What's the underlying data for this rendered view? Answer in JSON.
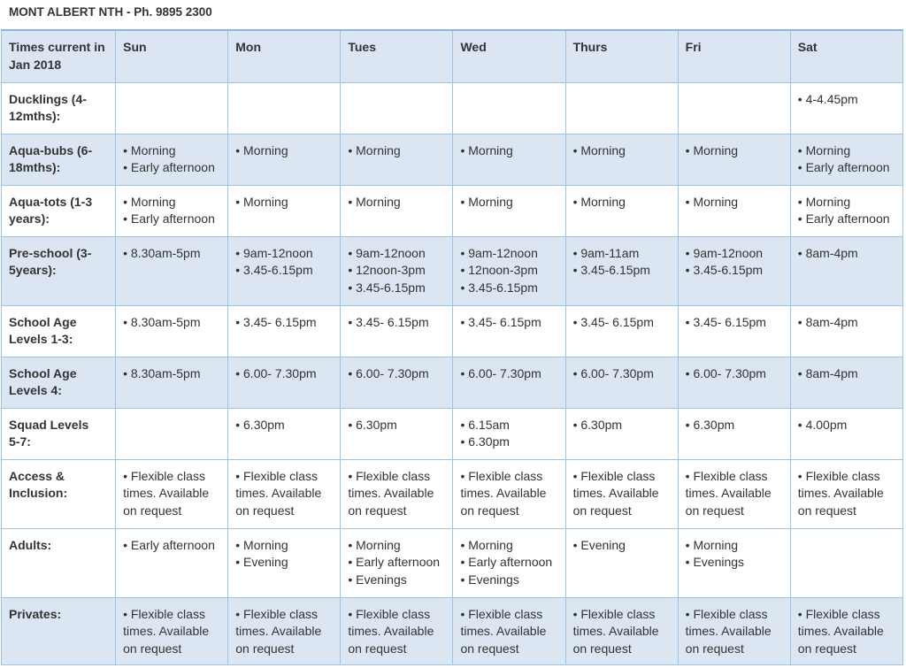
{
  "title": "MONT ALBERT NTH - Ph. 9895 2300",
  "colors": {
    "header_bg": "#dce6f2",
    "border": "#9dc3e6",
    "text": "#333333"
  },
  "header": [
    "Times current in Jan 2018",
    "Sun",
    "Mon",
    "Tues",
    "Wed",
    "Thurs",
    "Fri",
    "Sat"
  ],
  "rows": [
    {
      "label": "Ducklings (4-12mths):",
      "cells": [
        [],
        [],
        [],
        [],
        [],
        [],
        [
          "• 4-4.45pm"
        ]
      ]
    },
    {
      "label": "Aqua-bubs (6-18mths):",
      "cells": [
        [
          "• Morning",
          "• Early afternoon"
        ],
        [
          "• Morning"
        ],
        [
          "• Morning"
        ],
        [
          "• Morning"
        ],
        [
          "• Morning"
        ],
        [
          "• Morning"
        ],
        [
          "• Morning",
          "• Early afternoon"
        ]
      ]
    },
    {
      "label": "Aqua-tots (1-3 years):",
      "cells": [
        [
          "• Morning",
          "• Early afternoon"
        ],
        [
          "• Morning"
        ],
        [
          "• Morning"
        ],
        [
          "• Morning"
        ],
        [
          "• Morning"
        ],
        [
          "• Morning"
        ],
        [
          "• Morning",
          "• Early afternoon"
        ]
      ]
    },
    {
      "label": "Pre-school (3-5years):",
      "cells": [
        [
          "• 8.30am-5pm"
        ],
        [
          "• 9am-12noon",
          "• 3.45-6.15pm"
        ],
        [
          "• 9am-12noon",
          "• 12noon-3pm",
          "• 3.45-6.15pm"
        ],
        [
          "• 9am-12noon",
          "• 12noon-3pm",
          "• 3.45-6.15pm"
        ],
        [
          "• 9am-11am",
          "• 3.45-6.15pm"
        ],
        [
          "• 9am-12noon",
          "• 3.45-6.15pm"
        ],
        [
          "• 8am-4pm"
        ]
      ]
    },
    {
      "label": "School Age Levels 1-3:",
      "cells": [
        [
          "• 8.30am-5pm"
        ],
        [
          "• 3.45- 6.15pm"
        ],
        [
          "• 3.45- 6.15pm"
        ],
        [
          "• 3.45- 6.15pm"
        ],
        [
          "• 3.45- 6.15pm"
        ],
        [
          "• 3.45- 6.15pm"
        ],
        [
          "• 8am-4pm"
        ]
      ]
    },
    {
      "label": "School Age Levels 4:",
      "cells": [
        [
          "• 8.30am-5pm"
        ],
        [
          "• 6.00- 7.30pm"
        ],
        [
          "• 6.00- 7.30pm"
        ],
        [
          "• 6.00- 7.30pm"
        ],
        [
          "• 6.00- 7.30pm"
        ],
        [
          "• 6.00- 7.30pm"
        ],
        [
          "• 8am-4pm"
        ]
      ]
    },
    {
      "label": "Squad Levels 5-7:",
      "cells": [
        [],
        [
          "• 6.30pm"
        ],
        [
          "• 6.30pm"
        ],
        [
          "• 6.15am",
          "• 6.30pm"
        ],
        [
          "• 6.30pm"
        ],
        [
          "• 6.30pm"
        ],
        [
          "• 4.00pm"
        ]
      ]
    },
    {
      "label": "Access & Inclusion:",
      "cells": [
        [
          "• Flexible class",
          "times.  Available",
          "on request"
        ],
        [
          "• Flexible class",
          "times.  Available",
          "on request"
        ],
        [
          "• Flexible class",
          "times.  Available",
          "on request"
        ],
        [
          "• Flexible class",
          "times.  Available",
          "on request"
        ],
        [
          "• Flexible class",
          "times.  Available",
          "on request"
        ],
        [
          "• Flexible class",
          "times.  Available",
          "on request"
        ],
        [
          "• Flexible class",
          "times.  Available",
          "on request"
        ]
      ]
    },
    {
      "label": "Adults:",
      "cells": [
        [
          "• Early afternoon"
        ],
        [
          "• Morning",
          "• Evening"
        ],
        [
          "• Morning",
          "• Early afternoon",
          "• Evenings"
        ],
        [
          "• Morning",
          "• Early afternoon",
          "• Evenings"
        ],
        [
          "• Evening"
        ],
        [
          "• Morning",
          "• Evenings"
        ],
        []
      ]
    },
    {
      "label": "Privates:",
      "cells": [
        [
          "• Flexible class",
          "times.  Available",
          "on request"
        ],
        [
          "• Flexible class",
          "times.  Available",
          "on request"
        ],
        [
          "• Flexible class",
          "times.  Available",
          "on request"
        ],
        [
          "• Flexible class",
          "times.  Available",
          "on request"
        ],
        [
          "• Flexible class",
          "times.  Available",
          "on request"
        ],
        [
          "• Flexible class",
          "times.  Available",
          "on request"
        ],
        [
          "• Flexible class",
          "times.  Available",
          "on request"
        ]
      ]
    }
  ]
}
